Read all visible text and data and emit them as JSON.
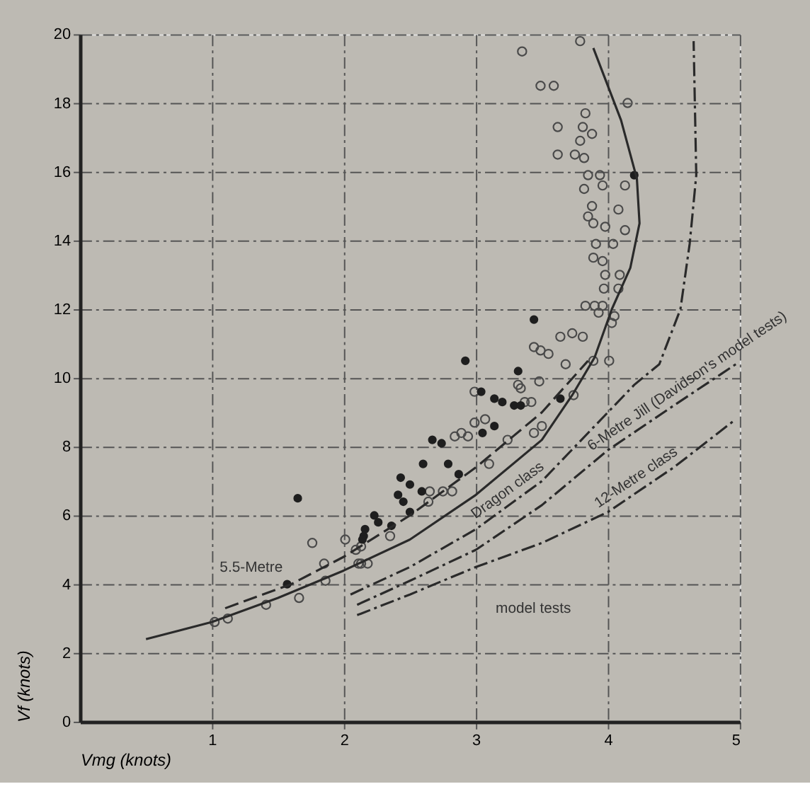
{
  "chart_data": {
    "type": "scatter",
    "xlabel": "Vmg (knots)",
    "ylabel": "Vf (knots)",
    "xlim": [
      0,
      5
    ],
    "xticks": [
      1,
      2,
      3,
      4,
      5
    ],
    "ylim": [
      0,
      20
    ],
    "yticks": [
      0,
      2,
      4,
      6,
      8,
      10,
      12,
      14,
      16,
      18,
      20
    ],
    "grid": true,
    "series": [
      {
        "marker": "circle",
        "color": "#4a4a4a",
        "x": [
          3.79,
          3.35,
          3.49,
          3.59,
          4.15,
          3.83,
          3.62,
          3.81,
          3.88,
          3.79,
          3.62,
          3.75,
          3.82,
          3.85,
          3.94,
          3.82,
          3.96,
          4.13,
          3.88,
          4.08,
          3.85,
          3.89,
          3.98,
          4.13,
          3.91,
          4.04,
          3.89,
          3.96,
          3.98,
          4.09,
          3.97,
          4.08,
          3.83,
          3.9,
          3.96,
          3.93,
          4.05,
          4.03,
          3.64,
          3.73,
          3.81,
          3.44,
          3.49,
          3.55,
          3.68,
          3.89,
          4.01,
          3.48,
          3.34,
          2.99,
          2.84,
          2.89,
          2.94,
          3.24,
          3.1,
          2.65,
          2.75,
          2.82,
          2.64,
          3.44,
          3.5,
          3.37,
          3.42,
          3.74,
          2.99,
          3.07,
          2.35,
          2.13,
          2.13,
          2.18,
          3.32,
          1.02,
          1.12,
          1.41,
          1.66,
          1.86,
          1.85,
          1.76,
          2.01,
          2.09,
          2.11
        ],
        "values": [
          19.8,
          19.5,
          18.5,
          18.5,
          18.0,
          17.7,
          17.3,
          17.3,
          17.1,
          16.9,
          16.5,
          16.5,
          16.4,
          15.9,
          15.9,
          15.5,
          15.6,
          15.6,
          15.0,
          14.9,
          14.7,
          14.5,
          14.4,
          14.3,
          13.9,
          13.9,
          13.5,
          13.4,
          13.0,
          13.0,
          12.6,
          12.6,
          12.1,
          12.1,
          12.1,
          11.9,
          11.8,
          11.6,
          11.2,
          11.3,
          11.2,
          10.9,
          10.8,
          10.7,
          10.4,
          10.5,
          10.5,
          9.9,
          9.7,
          9.6,
          8.3,
          8.4,
          8.3,
          8.2,
          7.5,
          6.7,
          6.7,
          6.7,
          6.4,
          8.4,
          8.6,
          9.3,
          9.3,
          9.5,
          8.7,
          8.8,
          5.4,
          5.1,
          4.6,
          4.6,
          9.8,
          2.9,
          3.0,
          3.4,
          3.6,
          4.1,
          4.6,
          5.2,
          5.3,
          5.0,
          4.6
        ]
      },
      {
        "marker": "circle",
        "color": "#1e1e1e",
        "x": [
          4.2,
          3.44,
          2.92,
          3.32,
          3.04,
          3.14,
          3.2,
          3.29,
          3.34,
          3.64,
          2.67,
          2.74,
          3.14,
          3.05,
          2.6,
          2.79,
          2.87,
          2.43,
          2.5,
          2.59,
          2.41,
          2.45,
          2.5,
          2.23,
          2.26,
          2.36,
          2.15,
          1.65,
          2.16,
          2.14,
          1.57
        ],
        "values": [
          15.9,
          11.7,
          10.5,
          10.2,
          9.6,
          9.4,
          9.3,
          9.2,
          9.2,
          9.4,
          8.2,
          8.1,
          8.6,
          8.4,
          7.5,
          7.5,
          7.2,
          7.1,
          6.9,
          6.7,
          6.6,
          6.4,
          6.1,
          6.0,
          5.8,
          5.7,
          5.4,
          6.5,
          5.6,
          5.3,
          4.0
        ]
      },
      {
        "type": "line",
        "color": "#2a2a2a",
        "line_style": "solid",
        "x": [
          0.5,
          1.0,
          1.5,
          2.0,
          2.5,
          3.0,
          3.5,
          3.73,
          3.9,
          4.03,
          4.17,
          4.24,
          4.22,
          4.1,
          3.89
        ],
        "values": [
          2.4,
          2.9,
          3.6,
          4.4,
          5.3,
          6.6,
          8.2,
          9.5,
          10.6,
          12.0,
          13.2,
          14.5,
          15.8,
          17.5,
          19.6
        ]
      },
      {
        "type": "line",
        "name": "5.5-Metre",
        "color": "#2a2a2a",
        "line_style": "dashed",
        "x": [
          1.1,
          1.6,
          2.0,
          2.5,
          3.0,
          3.5,
          3.85
        ],
        "values": [
          3.3,
          4.0,
          4.8,
          6.0,
          7.4,
          9.0,
          10.5
        ]
      },
      {
        "type": "line",
        "name": "Dragon class",
        "color": "#2a2a2a",
        "line_style": "dashed",
        "x": [
          2.05,
          2.5,
          3.0,
          3.5,
          3.9,
          4.2,
          4.39,
          4.55,
          4.62,
          4.67,
          4.65
        ],
        "values": [
          3.7,
          4.5,
          5.6,
          7.0,
          8.6,
          9.8,
          10.4,
          12.0,
          13.9,
          15.9,
          19.8
        ]
      },
      {
        "type": "line",
        "name": "6-Metre Jill (Davidson's model tests)",
        "color": "#2a2a2a",
        "line_style": "dashed",
        "x": [
          2.1,
          2.5,
          3.0,
          3.5,
          4.0,
          4.5,
          4.97
        ],
        "values": [
          3.4,
          4.1,
          5.0,
          6.3,
          7.9,
          9.2,
          10.4
        ]
      },
      {
        "type": "line",
        "name": "12-Metre class",
        "color": "#2a2a2a",
        "line_style": "dashed",
        "x": [
          2.1,
          2.5,
          3.0,
          3.5,
          4.0,
          4.5,
          4.97
        ],
        "values": [
          3.1,
          3.7,
          4.5,
          5.2,
          6.1,
          7.4,
          8.8
        ]
      }
    ],
    "annotations": [
      "model tests"
    ]
  }
}
